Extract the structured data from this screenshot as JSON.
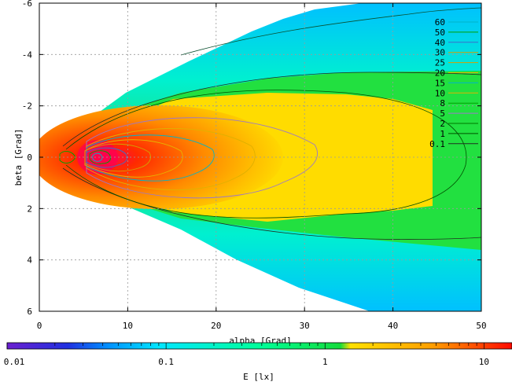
{
  "chart_data": {
    "type": "heatmap",
    "title": "",
    "xlabel": "alpha [Grad]",
    "ylabel": "beta [Grad]",
    "colorbar_label": "E [lx]",
    "xlim": [
      0,
      50
    ],
    "ylim_top_to_bottom": [
      -6,
      6
    ],
    "x_ticks": [
      "0",
      "10",
      "20",
      "30",
      "40",
      "50"
    ],
    "y_ticks": [
      "-6",
      "-4",
      "-2",
      "0",
      "2",
      "4",
      "6"
    ],
    "x_tick_values": [
      0,
      10,
      20,
      30,
      40,
      50
    ],
    "y_tick_values": [
      -6,
      -4,
      -2,
      0,
      2,
      4,
      6
    ],
    "colorbar_ticks": [
      "0.01",
      "0.1",
      "1",
      "10"
    ],
    "colorbar_tick_values": [
      0.01,
      0.1,
      1,
      10
    ],
    "colorbar_range": [
      0.01,
      15
    ],
    "color_scale": "log",
    "grid": true,
    "legend_position": "top-right",
    "contour_levels": [
      {
        "label": "60",
        "color": "#00b4c8"
      },
      {
        "label": "50",
        "color": "#00a000"
      },
      {
        "label": "40",
        "color": "#3c6ec8"
      },
      {
        "label": "30",
        "color": "#d4a000"
      },
      {
        "label": "25",
        "color": "#d4a000"
      },
      {
        "label": "20",
        "color": "#e6b400"
      },
      {
        "label": "15",
        "color": "#00b4c8"
      },
      {
        "label": "10",
        "color": "#e0b000"
      },
      {
        "label": "8",
        "color": "#00a000"
      },
      {
        "label": "5",
        "color": "#9c78c8"
      },
      {
        "label": "2",
        "color": "#007800"
      },
      {
        "label": "1",
        "color": "#005000"
      },
      {
        "label": "0.1",
        "color": "#203020"
      }
    ],
    "colors": {
      "c001": "#6a1fcf",
      "c01": "#00e6ff",
      "c05": "#00ff96",
      "c1": "#14dc3c",
      "c5": "#ffdc00",
      "c10": "#ff8c00",
      "c15": "#ff0a00"
    }
  }
}
